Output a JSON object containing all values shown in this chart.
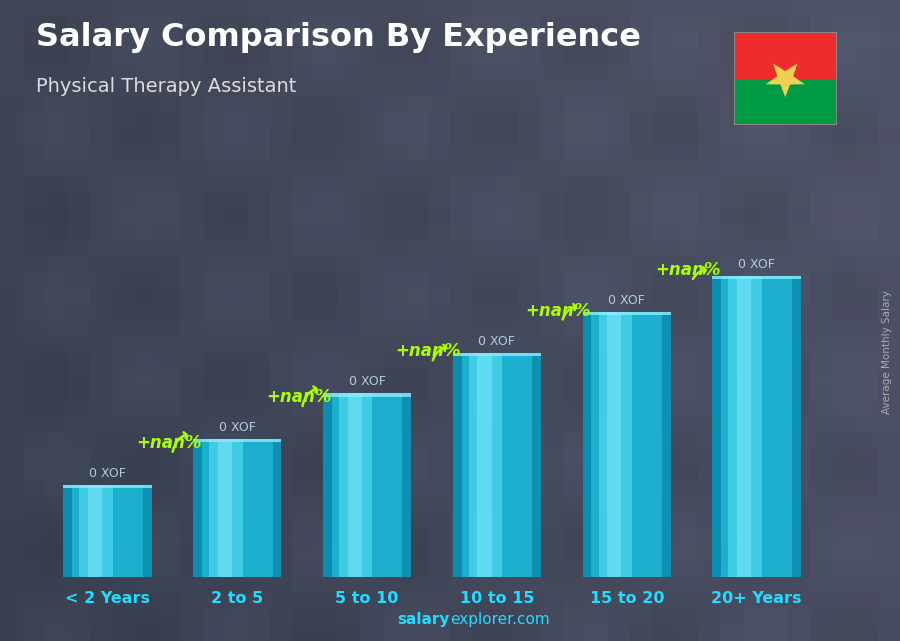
{
  "title": "Salary Comparison By Experience",
  "subtitle": "Physical Therapy Assistant",
  "categories": [
    "< 2 Years",
    "2 to 5",
    "5 to 10",
    "10 to 15",
    "15 to 20",
    "20+ Years"
  ],
  "bar_heights": [
    1.8,
    2.7,
    3.6,
    4.4,
    5.2,
    5.9
  ],
  "salary_labels": [
    "0 XOF",
    "0 XOF",
    "0 XOF",
    "0 XOF",
    "0 XOF",
    "0 XOF"
  ],
  "increase_labels": [
    "+nan%",
    "+nan%",
    "+nan%",
    "+nan%",
    "+nan%"
  ],
  "increase_color": "#aaff00",
  "bar_main": "#1ab8d8",
  "bar_light": "#4dd6ee",
  "bar_dark": "#0888aa",
  "bar_highlight": "#88eeff",
  "salary_label_color": "#b0ccdd",
  "xlabel_color": "#22ddff",
  "title_color": "#ffffff",
  "subtitle_color": "#dddddd",
  "ylabel_text": "Average Monthly Salary",
  "ylabel_color": "#aaaaaa",
  "bg_color1": "#5a6070",
  "bg_color2": "#7a8090",
  "bg_color3": "#3a4050",
  "overlay_color": "#2a3040",
  "website_color": "#22ddff",
  "flag_red": "#EF2B2D",
  "flag_green": "#009A44",
  "flag_star": "#EFD050",
  "figsize": [
    9.0,
    6.41
  ],
  "dpi": 100
}
